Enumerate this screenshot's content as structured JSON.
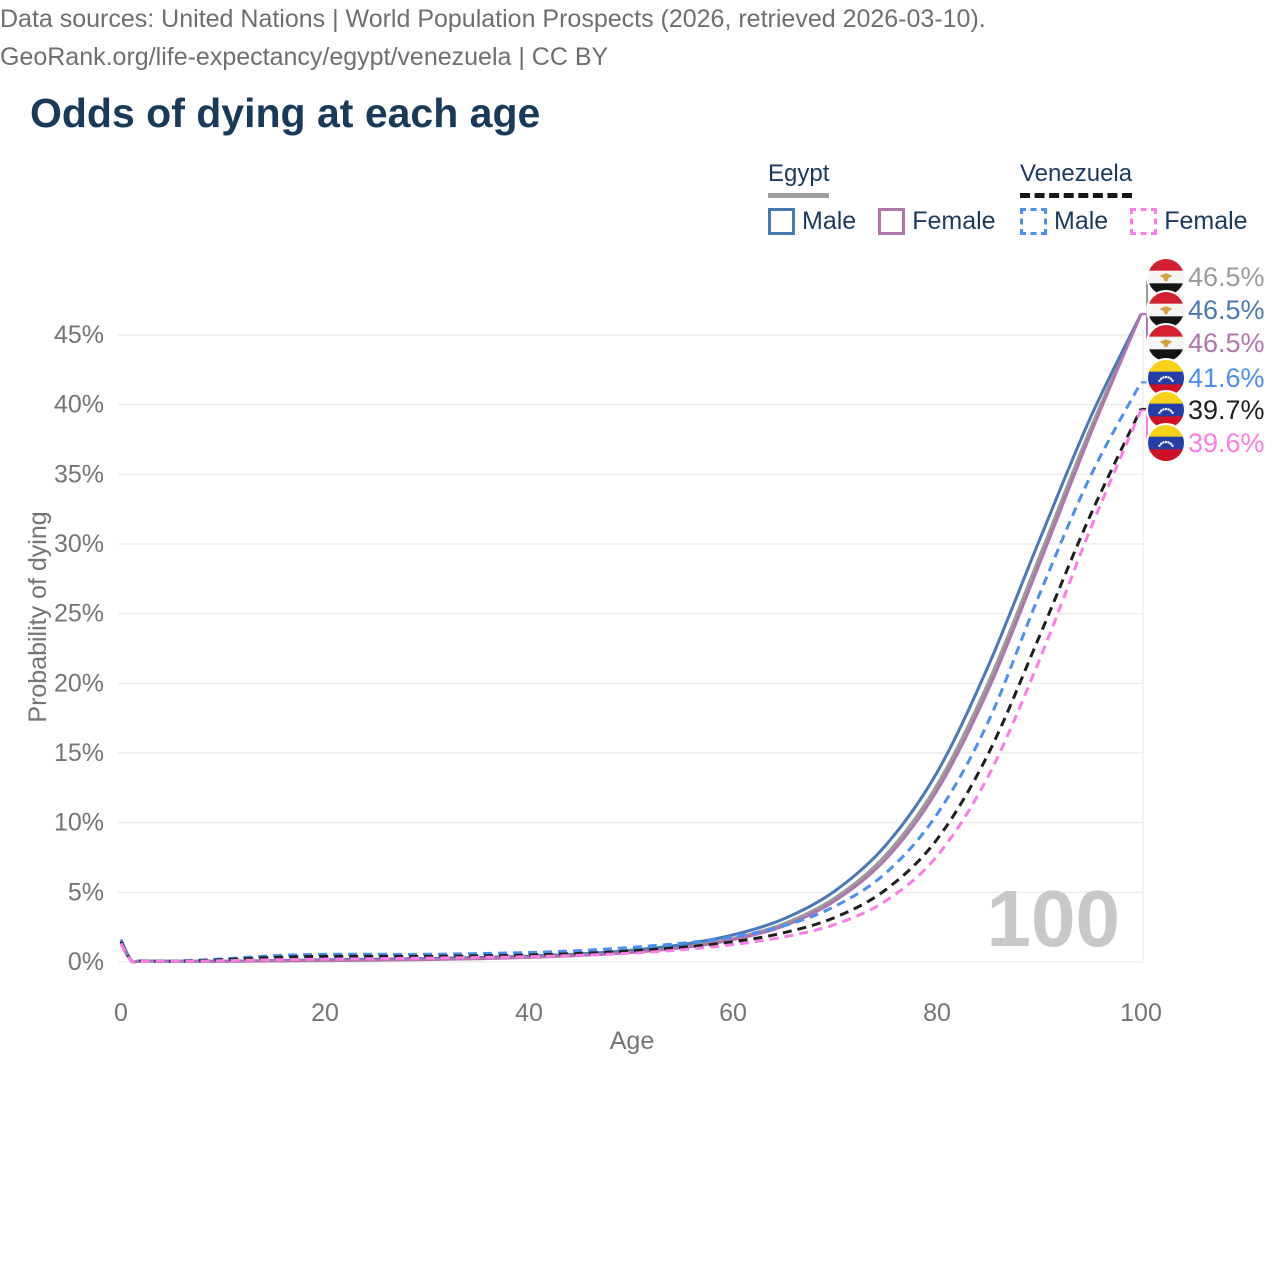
{
  "title": "Odds of dying at each age",
  "legend": {
    "egypt": {
      "label": "Egypt",
      "male_label": "Male",
      "female_label": "Female"
    },
    "venezuela": {
      "label": "Venezuela",
      "male_label": "Male",
      "female_label": "Female"
    }
  },
  "footer": {
    "line1": "Data sources: United Nations | World Population Prospects (2026, retrieved 2026-03-10).",
    "line2": "GeoRank.org/life-expectancy/egypt/venezuela | CC BY"
  },
  "colors": {
    "title_text": "#1a3a5c",
    "axis_text": "#757575",
    "gridline": "#ededed",
    "watermark": "#c8c8c8",
    "egypt_underline": "#9e9e9e",
    "venezuela_underline": "#161616"
  },
  "chart_data": {
    "type": "line",
    "title": "Odds of dying at each age",
    "xlabel": "Age",
    "ylabel": "Probability of dying",
    "xlim": [
      0,
      100
    ],
    "ylim": [
      0,
      48
    ],
    "x_ticks": [
      0,
      20,
      40,
      60,
      80,
      100
    ],
    "y_ticks": [
      0,
      5,
      10,
      15,
      20,
      25,
      30,
      35,
      40,
      45
    ],
    "y_tick_suffix": "%",
    "grid": "horizontal",
    "legend_position": "top-right",
    "age_cursor_label": "100",
    "x": [
      0,
      1,
      2,
      5,
      10,
      15,
      20,
      25,
      30,
      35,
      40,
      45,
      50,
      55,
      60,
      65,
      70,
      75,
      80,
      85,
      90,
      95,
      100
    ],
    "series": [
      {
        "name": "Egypt Combined",
        "country": "egypt",
        "sex": "combined",
        "style": "solid",
        "color": "#9b9b9b",
        "end_label": "46.5%",
        "values": [
          1.45,
          0.11,
          0.07,
          0.055,
          0.055,
          0.085,
          0.13,
          0.16,
          0.2,
          0.27,
          0.37,
          0.52,
          0.75,
          1.1,
          1.7,
          2.75,
          4.6,
          7.7,
          12.7,
          20.0,
          29.0,
          38.2,
          46.5
        ]
      },
      {
        "name": "Egypt Male",
        "country": "egypt",
        "sex": "male",
        "style": "solid",
        "color": "#4a7ab5",
        "end_label": "46.5%",
        "values": [
          1.6,
          0.12,
          0.08,
          0.06,
          0.06,
          0.1,
          0.16,
          0.2,
          0.25,
          0.32,
          0.42,
          0.58,
          0.85,
          1.25,
          1.95,
          3.1,
          5.1,
          8.4,
          13.6,
          21.2,
          30.2,
          39.0,
          46.5
        ]
      },
      {
        "name": "Egypt Female",
        "country": "egypt",
        "sex": "female",
        "style": "solid",
        "color": "#b175ae",
        "end_label": "46.5%",
        "values": [
          1.3,
          0.1,
          0.065,
          0.05,
          0.05,
          0.07,
          0.1,
          0.13,
          0.17,
          0.23,
          0.33,
          0.47,
          0.68,
          1.02,
          1.6,
          2.6,
          4.4,
          7.4,
          12.3,
          19.5,
          28.5,
          37.8,
          46.5
        ]
      },
      {
        "name": "Venezuela Male",
        "country": "venezuela",
        "sex": "male",
        "style": "dashed",
        "color": "#4b8ff0",
        "end_label": "41.6%",
        "values": [
          1.55,
          0.12,
          0.08,
          0.06,
          0.22,
          0.45,
          0.55,
          0.55,
          0.55,
          0.6,
          0.68,
          0.82,
          1.05,
          1.35,
          1.8,
          2.6,
          4.0,
          6.4,
          10.6,
          17.2,
          26.3,
          34.8,
          41.6
        ]
      },
      {
        "name": "Venezuela Combined",
        "country": "venezuela",
        "sex": "combined",
        "style": "dashed",
        "color": "#1f1f1f",
        "end_label": "39.7%",
        "values": [
          1.45,
          0.11,
          0.07,
          0.055,
          0.16,
          0.33,
          0.4,
          0.4,
          0.4,
          0.44,
          0.5,
          0.62,
          0.8,
          1.05,
          1.45,
          2.1,
          3.2,
          5.2,
          8.8,
          14.9,
          23.3,
          32.0,
          39.7
        ]
      },
      {
        "name": "Venezuela Female",
        "country": "venezuela",
        "sex": "female",
        "style": "dashed",
        "color": "#fc7de6",
        "end_label": "39.6%",
        "values": [
          1.35,
          0.1,
          0.065,
          0.05,
          0.09,
          0.16,
          0.2,
          0.24,
          0.28,
          0.32,
          0.38,
          0.48,
          0.63,
          0.88,
          1.25,
          1.8,
          2.7,
          4.4,
          7.6,
          13.3,
          21.6,
          31.0,
          39.6
        ]
      }
    ],
    "flag_colors": {
      "egypt": {
        "band_top": "#d41f30",
        "band_mid": "#f4f4f4",
        "band_bottom": "#141414",
        "emblem": "#d8a13f"
      },
      "venezuela": {
        "band_top": "#f6d21a",
        "band_mid": "#2440a8",
        "band_bottom": "#cf1126",
        "stars": "#ffffff"
      }
    }
  }
}
